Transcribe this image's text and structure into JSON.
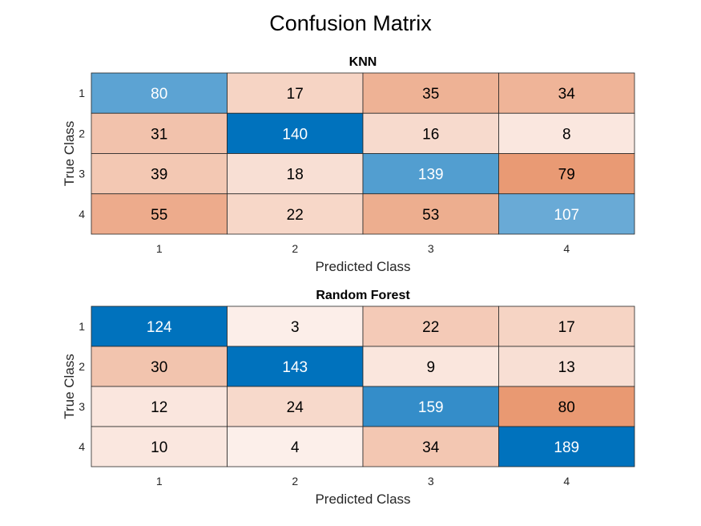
{
  "figure": {
    "title": "Confusion Matrix"
  },
  "colors": {
    "diag_strong": "#0072bd",
    "diag_light": "#6aaad6",
    "offdiag_strong": "#e8966e",
    "offdiag_light": "#fdf4f1",
    "background": "#ffffff"
  },
  "chart_data": [
    {
      "type": "heatmap",
      "title": "KNN",
      "xlabel": "Predicted Class",
      "ylabel": "True Class",
      "x_categories": [
        "1",
        "2",
        "3",
        "4"
      ],
      "y_categories": [
        "1",
        "2",
        "3",
        "4"
      ],
      "matrix": [
        [
          80,
          17,
          35,
          34
        ],
        [
          31,
          140,
          16,
          8
        ],
        [
          39,
          18,
          139,
          79
        ],
        [
          55,
          22,
          53,
          107
        ]
      ],
      "grid": true
    },
    {
      "type": "heatmap",
      "title": "Random Forest",
      "xlabel": "Predicted Class",
      "ylabel": "True Class",
      "x_categories": [
        "1",
        "2",
        "3",
        "4"
      ],
      "y_categories": [
        "1",
        "2",
        "3",
        "4"
      ],
      "matrix": [
        [
          124,
          3,
          22,
          17
        ],
        [
          30,
          143,
          9,
          13
        ],
        [
          12,
          24,
          159,
          80
        ],
        [
          10,
          4,
          34,
          189
        ]
      ],
      "grid": true
    }
  ]
}
